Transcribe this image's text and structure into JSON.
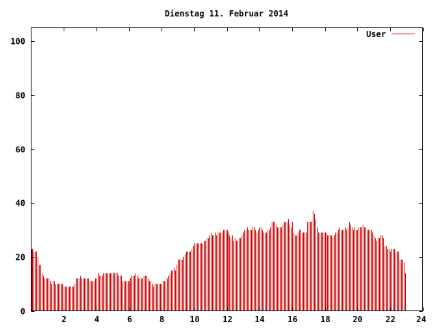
{
  "chart_data": {
    "type": "bar",
    "title": "Dienstag 11. Februar 2014",
    "xlabel": "",
    "ylabel": "",
    "xlim": [
      0,
      24
    ],
    "ylim": [
      0,
      105
    ],
    "xticks": [
      2,
      4,
      6,
      8,
      10,
      12,
      14,
      16,
      18,
      20,
      22,
      24
    ],
    "yticks": [
      0,
      20,
      40,
      60,
      80,
      100
    ],
    "grid": false,
    "legend_position": "top-right",
    "series": [
      {
        "name": "User",
        "color": "#cc0000",
        "x_start": 0.0,
        "x_step_minutes": 5,
        "values": [
          23,
          23,
          22,
          22,
          22,
          20,
          17,
          17,
          14,
          13,
          12,
          12,
          12,
          12,
          11,
          10,
          11,
          11,
          10,
          10,
          10,
          10,
          10,
          10,
          9,
          9,
          9,
          9,
          9,
          9,
          9,
          9,
          10,
          12,
          12,
          12,
          13,
          12,
          12,
          12,
          12,
          12,
          12,
          11,
          11,
          11,
          11,
          12,
          12,
          14,
          13,
          13,
          13,
          14,
          14,
          14,
          14,
          14,
          14,
          14,
          14,
          14,
          14,
          14,
          13,
          13,
          13,
          11,
          11,
          11,
          11,
          11,
          11,
          12,
          13,
          13,
          13,
          14,
          13,
          12,
          12,
          12,
          12,
          13,
          13,
          13,
          12,
          11,
          11,
          10,
          9,
          10,
          10,
          10,
          10,
          10,
          10,
          11,
          11,
          11,
          12,
          13,
          14,
          15,
          15,
          16,
          15,
          17,
          19,
          19,
          19,
          19,
          20,
          21,
          22,
          22,
          22,
          22,
          23,
          24,
          25,
          25,
          25,
          25,
          25,
          25,
          25,
          26,
          26,
          27,
          27,
          28,
          29,
          28,
          28,
          29,
          28,
          29,
          29,
          29,
          29,
          30,
          30,
          30,
          30,
          29,
          28,
          27,
          28,
          26,
          27,
          26,
          26,
          27,
          27,
          28,
          29,
          30,
          30,
          31,
          30,
          30,
          30,
          31,
          31,
          30,
          29,
          30,
          31,
          31,
          30,
          29,
          29,
          29,
          30,
          30,
          31,
          33,
          33,
          33,
          32,
          31,
          31,
          31,
          31,
          32,
          33,
          33,
          33,
          34,
          32,
          31,
          33,
          29,
          28,
          28,
          29,
          30,
          30,
          29,
          29,
          29,
          29,
          33,
          33,
          33,
          33,
          37,
          36,
          34,
          31,
          29,
          29,
          29,
          29,
          29,
          29,
          29,
          28,
          28,
          28,
          28,
          27,
          28,
          29,
          29,
          30,
          31,
          30,
          30,
          30,
          31,
          30,
          31,
          33,
          32,
          31,
          30,
          31,
          30,
          30,
          31,
          31,
          31,
          32,
          31,
          31,
          30,
          30,
          30,
          30,
          29,
          28,
          27,
          26,
          27,
          27,
          28,
          28,
          27,
          24,
          24,
          23,
          23,
          22,
          23,
          23,
          23,
          22,
          22,
          22,
          19,
          19,
          19,
          18,
          14
        ]
      }
    ]
  }
}
